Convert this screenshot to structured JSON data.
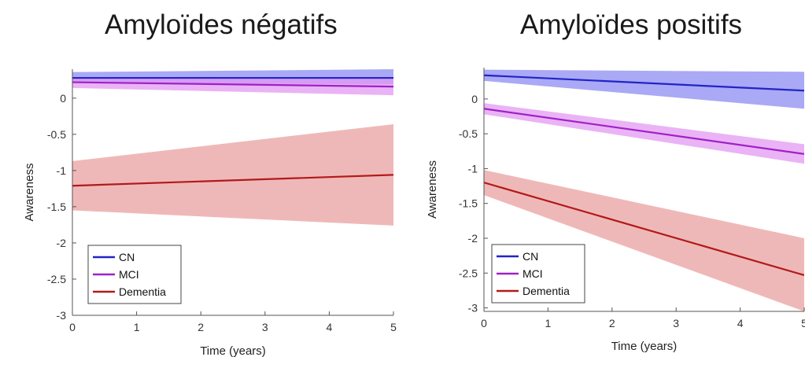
{
  "titles": {
    "left": "Amyloïdes négatifs",
    "right": "Amyloïdes positifs"
  },
  "chart_data": [
    {
      "type": "line",
      "title": "Amyloïdes négatifs",
      "xlabel": "Time (years)",
      "ylabel": "Awareness",
      "xlim": [
        0,
        5
      ],
      "ylim": [
        -3,
        0.4
      ],
      "xticks": [
        0,
        1,
        2,
        3,
        4,
        5
      ],
      "yticks": [
        0,
        -0.5,
        -1,
        -1.5,
        -2,
        -2.5,
        -3
      ],
      "grid": false,
      "legend_position": "bottom-left",
      "series": [
        {
          "name": "CN",
          "color": "#2323c8",
          "band_color": "#8c8cf2",
          "x": [
            0,
            5
          ],
          "y": [
            0.28,
            0.28
          ],
          "lower": [
            0.21,
            0.19
          ],
          "upper": [
            0.36,
            0.4
          ]
        },
        {
          "name": "MCI",
          "color": "#a020c8",
          "band_color": "#e39af2",
          "x": [
            0,
            5
          ],
          "y": [
            0.22,
            0.16
          ],
          "lower": [
            0.14,
            0.04
          ],
          "upper": [
            0.29,
            0.28
          ]
        },
        {
          "name": "Dementia",
          "color": "#b21a1a",
          "band_color": "#e9a0a0",
          "x": [
            0,
            5
          ],
          "y": [
            -1.21,
            -1.06
          ],
          "lower": [
            -1.55,
            -1.76
          ],
          "upper": [
            -0.87,
            -0.36
          ]
        }
      ]
    },
    {
      "type": "line",
      "title": "Amyloïdes positifs",
      "xlabel": "Time (years)",
      "ylabel": "Awareness",
      "xlim": [
        0,
        5
      ],
      "ylim": [
        -3.05,
        0.45
      ],
      "xticks": [
        0,
        1,
        2,
        3,
        4,
        5
      ],
      "yticks": [
        0,
        -0.5,
        -1,
        -1.5,
        -2,
        -2.5,
        -3
      ],
      "grid": false,
      "legend_position": "bottom-left",
      "series": [
        {
          "name": "CN",
          "color": "#2323c8",
          "band_color": "#8c8cf2",
          "x": [
            0,
            5
          ],
          "y": [
            0.34,
            0.12
          ],
          "lower": [
            0.26,
            -0.14
          ],
          "upper": [
            0.42,
            0.39
          ]
        },
        {
          "name": "MCI",
          "color": "#a020c8",
          "band_color": "#e39af2",
          "x": [
            0,
            5
          ],
          "y": [
            -0.14,
            -0.79
          ],
          "lower": [
            -0.22,
            -0.93
          ],
          "upper": [
            -0.06,
            -0.65
          ]
        },
        {
          "name": "Dementia",
          "color": "#b21a1a",
          "band_color": "#e9a0a0",
          "x": [
            0,
            5
          ],
          "y": [
            -1.2,
            -2.53
          ],
          "lower": [
            -1.38,
            -3.05
          ],
          "upper": [
            -1.02,
            -2.0
          ]
        }
      ]
    }
  ]
}
